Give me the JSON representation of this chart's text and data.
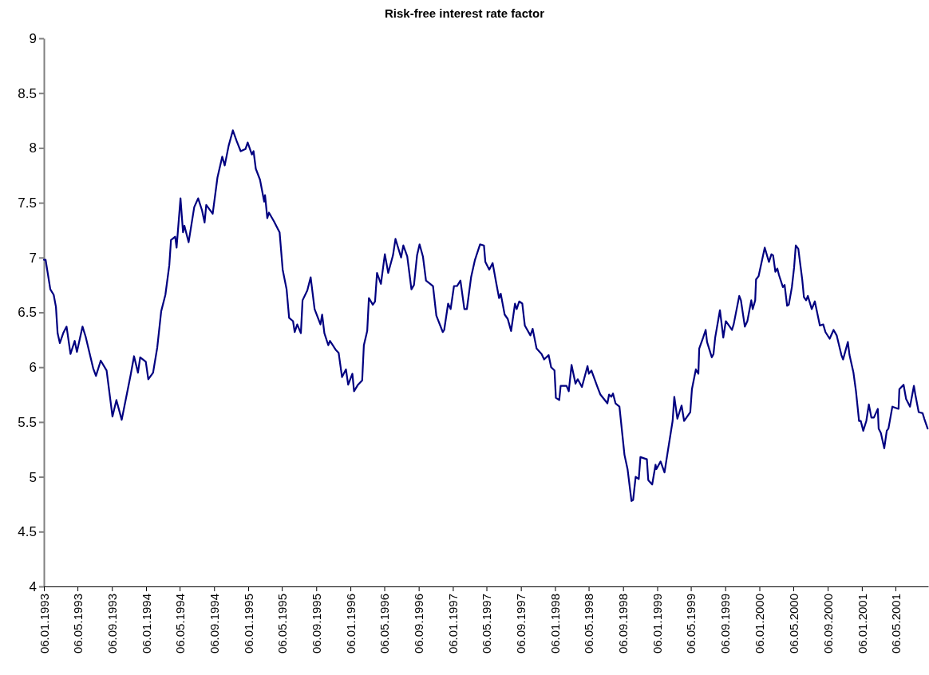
{
  "chart_data": {
    "type": "line",
    "title": "Risk-free interest rate factor",
    "x": [
      "1993-01-06",
      "1993-01-12",
      "1993-01-29",
      "1993-02-10",
      "1993-02-18",
      "1993-02-24",
      "1993-03-04",
      "1993-03-16",
      "1993-03-28",
      "1993-04-11",
      "1993-04-26",
      "1993-05-04",
      "1993-05-24",
      "1993-06-04",
      "1993-07-01",
      "1993-07-11",
      "1993-07-28",
      "1993-08-18",
      "1993-09-08",
      "1993-09-22",
      "1993-10-11",
      "1993-10-25",
      "1993-11-12",
      "1993-11-24",
      "1993-12-08",
      "1993-12-16",
      "1994-01-05",
      "1994-01-14",
      "1994-01-31",
      "1994-02-15",
      "1994-03-01",
      "1994-03-16",
      "1994-03-30",
      "1994-04-05",
      "1994-04-20",
      "1994-04-25",
      "1994-05-09",
      "1994-05-18",
      "1994-05-23",
      "1994-06-07",
      "1994-06-27",
      "1994-07-11",
      "1994-07-25",
      "1994-08-03",
      "1994-08-09",
      "1994-09-01",
      "1994-09-18",
      "1994-10-05",
      "1994-10-14",
      "1994-10-28",
      "1994-11-12",
      "1994-11-26",
      "1994-12-10",
      "1994-12-27",
      "1995-01-04",
      "1995-01-19",
      "1995-01-25",
      "1995-02-02",
      "1995-02-17",
      "1995-03-04",
      "1995-03-07",
      "1995-03-15",
      "1995-03-21",
      "1995-04-08",
      "1995-04-28",
      "1995-05-09",
      "1995-05-23",
      "1995-06-01",
      "1995-06-15",
      "1995-06-21",
      "1995-06-30",
      "1995-07-13",
      "1995-07-19",
      "1995-08-05",
      "1995-08-17",
      "1995-08-31",
      "1995-09-21",
      "1995-09-27",
      "1995-10-05",
      "1995-10-19",
      "1995-10-25",
      "1995-11-14",
      "1995-11-25",
      "1995-12-07",
      "1995-12-21",
      "1995-12-29",
      "1996-01-13",
      "1996-01-19",
      "1996-02-02",
      "1996-02-17",
      "1996-02-23",
      "1996-03-06",
      "1996-03-12",
      "1996-03-26",
      "1996-04-03",
      "1996-04-10",
      "1996-04-24",
      "1996-05-08",
      "1996-05-20",
      "1996-06-06",
      "1996-06-15",
      "1996-07-05",
      "1996-07-13",
      "1996-07-27",
      "1996-08-11",
      "1996-08-20",
      "1996-08-31",
      "1996-09-09",
      "1996-09-21",
      "1996-10-02",
      "1996-10-27",
      "1996-11-08",
      "1996-12-01",
      "1996-12-06",
      "1996-12-20",
      "1996-12-29",
      "1997-01-10",
      "1997-01-21",
      "1997-02-02",
      "1997-02-16",
      "1997-02-25",
      "1997-03-12",
      "1997-03-26",
      "1997-04-13",
      "1997-04-27",
      "1997-05-02",
      "1997-05-16",
      "1997-05-28",
      "1997-06-09",
      "1997-06-20",
      "1997-06-26",
      "1997-07-10",
      "1997-07-21",
      "1997-08-02",
      "1997-08-16",
      "1997-08-22",
      "1997-08-31",
      "1997-09-11",
      "1997-09-20",
      "1997-10-10",
      "1997-10-18",
      "1997-11-01",
      "1997-11-19",
      "1997-11-28",
      "1997-12-14",
      "1997-12-23",
      "1998-01-04",
      "1998-01-09",
      "1998-01-21",
      "1998-01-26",
      "1998-02-16",
      "1998-02-24",
      "1998-03-06",
      "1998-03-20",
      "1998-03-28",
      "1998-04-12",
      "1998-05-02",
      "1998-05-07",
      "1998-05-16",
      "1998-06-05",
      "1998-06-17",
      "1998-07-12",
      "1998-07-18",
      "1998-07-26",
      "1998-08-01",
      "1998-08-10",
      "1998-08-24",
      "1998-09-11",
      "1998-09-22",
      "1998-10-06",
      "1998-10-12",
      "1998-10-21",
      "1998-11-01",
      "1998-11-07",
      "1998-11-30",
      "1998-12-05",
      "1998-12-19",
      "1998-12-31",
      "1999-01-03",
      "1999-01-18",
      "1999-02-01",
      "1999-02-12",
      "1999-03-02",
      "1999-03-08",
      "1999-03-19",
      "1999-04-03",
      "1999-04-12",
      "1999-05-04",
      "1999-05-10",
      "1999-05-24",
      "1999-06-02",
      "1999-06-05",
      "1999-06-19",
      "1999-06-28",
      "1999-07-03",
      "1999-07-20",
      "1999-07-26",
      "1999-08-01",
      "1999-08-18",
      "1999-08-30",
      "1999-09-08",
      "1999-09-30",
      "1999-10-06",
      "1999-10-26",
      "1999-11-01",
      "1999-11-15",
      "1999-11-24",
      "1999-12-08",
      "1999-12-13",
      "1999-12-22",
      "1999-12-25",
      "2000-01-03",
      "2000-01-25",
      "2000-02-09",
      "2000-02-18",
      "2000-02-24",
      "2000-03-03",
      "2000-03-10",
      "2000-03-16",
      "2000-03-30",
      "2000-04-05",
      "2000-04-14",
      "2000-04-20",
      "2000-05-01",
      "2000-05-09",
      "2000-05-15",
      "2000-05-24",
      "2000-05-29",
      "2000-06-07",
      "2000-06-13",
      "2000-06-21",
      "2000-06-27",
      "2000-07-11",
      "2000-07-22",
      "2000-08-09",
      "2000-08-21",
      "2000-08-29",
      "2000-09-13",
      "2000-09-27",
      "2000-10-08",
      "2000-10-25",
      "2000-10-31",
      "2000-11-17",
      "2000-11-23",
      "2000-12-07",
      "2000-12-16",
      "2000-12-27",
      "2001-01-02",
      "2001-01-11",
      "2001-01-22",
      "2001-01-31",
      "2001-02-09",
      "2001-02-18",
      "2001-03-04",
      "2001-03-07",
      "2001-03-15",
      "2001-03-27",
      "2001-04-05",
      "2001-04-11",
      "2001-04-25",
      "2001-05-17",
      "2001-05-20",
      "2001-06-04",
      "2001-06-13",
      "2001-06-27",
      "2001-07-11",
      "2001-07-16",
      "2001-07-28",
      "2001-08-11",
      "2001-08-17",
      "2001-08-29"
    ],
    "series": [
      {
        "color": "#000080",
        "values": [
          6.98,
          6.98,
          6.71,
          6.66,
          6.55,
          6.31,
          6.22,
          6.31,
          6.37,
          6.12,
          6.24,
          6.14,
          6.37,
          6.28,
          5.99,
          5.92,
          6.06,
          5.97,
          5.55,
          5.7,
          5.52,
          5.7,
          5.93,
          6.1,
          5.95,
          6.09,
          6.05,
          5.89,
          5.95,
          6.18,
          6.51,
          6.66,
          6.93,
          7.16,
          7.19,
          7.09,
          7.54,
          7.23,
          7.29,
          7.14,
          7.46,
          7.54,
          7.43,
          7.32,
          7.48,
          7.4,
          7.73,
          7.92,
          7.84,
          8.02,
          8.16,
          8.06,
          7.97,
          7.99,
          8.05,
          7.94,
          7.97,
          7.81,
          7.71,
          7.51,
          7.57,
          7.36,
          7.41,
          7.33,
          7.23,
          6.89,
          6.71,
          6.45,
          6.42,
          6.32,
          6.39,
          6.31,
          6.61,
          6.7,
          6.82,
          6.53,
          6.39,
          6.48,
          6.31,
          6.2,
          6.24,
          6.16,
          6.13,
          5.91,
          5.98,
          5.84,
          5.94,
          5.78,
          5.84,
          5.88,
          6.2,
          6.33,
          6.63,
          6.57,
          6.6,
          6.86,
          6.76,
          7.03,
          6.86,
          7.02,
          7.17,
          7.0,
          7.11,
          7.01,
          6.71,
          6.75,
          7.02,
          7.12,
          7.01,
          6.79,
          6.74,
          6.47,
          6.32,
          6.34,
          6.58,
          6.53,
          6.74,
          6.74,
          6.79,
          6.53,
          6.53,
          6.82,
          6.98,
          7.12,
          7.11,
          6.96,
          6.89,
          6.95,
          6.78,
          6.63,
          6.67,
          6.48,
          6.44,
          6.33,
          6.58,
          6.53,
          6.6,
          6.58,
          6.38,
          6.29,
          6.35,
          6.17,
          6.12,
          6.07,
          6.11,
          6.0,
          5.97,
          5.72,
          5.7,
          5.83,
          5.83,
          5.78,
          6.02,
          5.85,
          5.89,
          5.82,
          6.01,
          5.94,
          5.97,
          5.83,
          5.75,
          5.67,
          5.75,
          5.73,
          5.76,
          5.67,
          5.64,
          5.2,
          5.07,
          4.78,
          4.79,
          5.0,
          4.98,
          5.18,
          5.16,
          4.97,
          4.93,
          5.11,
          5.07,
          5.14,
          5.04,
          5.22,
          5.51,
          5.73,
          5.53,
          5.65,
          5.51,
          5.59,
          5.8,
          5.98,
          5.94,
          6.17,
          6.27,
          6.34,
          6.23,
          6.09,
          6.12,
          6.27,
          6.52,
          6.27,
          6.42,
          6.34,
          6.39,
          6.65,
          6.61,
          6.37,
          6.42,
          6.61,
          6.53,
          6.61,
          6.8,
          6.83,
          7.09,
          6.96,
          7.03,
          7.02,
          6.87,
          6.9,
          6.84,
          6.73,
          6.75,
          6.56,
          6.57,
          6.73,
          6.91,
          7.11,
          7.08,
          6.98,
          6.8,
          6.64,
          6.61,
          6.65,
          6.53,
          6.6,
          6.38,
          6.39,
          6.32,
          6.26,
          6.34,
          6.29,
          6.11,
          6.07,
          6.23,
          6.11,
          5.95,
          5.78,
          5.51,
          5.51,
          5.42,
          5.51,
          5.66,
          5.54,
          5.54,
          5.62,
          5.44,
          5.4,
          5.26,
          5.42,
          5.44,
          5.64,
          5.62,
          5.8,
          5.84,
          5.71,
          5.64,
          5.83,
          5.75,
          5.59,
          5.58,
          5.53,
          5.44
        ]
      }
    ],
    "xlim": [
      "1993-01-06",
      "2001-08-31"
    ],
    "xticks": [
      {
        "value": "1993-01-06",
        "label": "06.01.1993"
      },
      {
        "value": "1993-05-06",
        "label": "06.05.1993"
      },
      {
        "value": "1993-09-06",
        "label": "06.09.1993"
      },
      {
        "value": "1994-01-06",
        "label": "06.01.1994"
      },
      {
        "value": "1994-05-06",
        "label": "06.05.1994"
      },
      {
        "value": "1994-09-06",
        "label": "06.09.1994"
      },
      {
        "value": "1995-01-06",
        "label": "06.01.1995"
      },
      {
        "value": "1995-05-06",
        "label": "06.05.1995"
      },
      {
        "value": "1995-09-06",
        "label": "06.09.1995"
      },
      {
        "value": "1996-01-06",
        "label": "06.01.1996"
      },
      {
        "value": "1996-05-06",
        "label": "06.05.1996"
      },
      {
        "value": "1996-09-06",
        "label": "06.09.1996"
      },
      {
        "value": "1997-01-06",
        "label": "06.01.1997"
      },
      {
        "value": "1997-05-06",
        "label": "06.05.1997"
      },
      {
        "value": "1997-09-06",
        "label": "06.09.1997"
      },
      {
        "value": "1998-01-06",
        "label": "06.01.1998"
      },
      {
        "value": "1998-05-06",
        "label": "06.05.1998"
      },
      {
        "value": "1998-09-06",
        "label": "06.09.1998"
      },
      {
        "value": "1999-01-06",
        "label": "06.01.1999"
      },
      {
        "value": "1999-05-06",
        "label": "06.05.1999"
      },
      {
        "value": "1999-09-06",
        "label": "06.09.1999"
      },
      {
        "value": "2000-01-06",
        "label": "06.01.2000"
      },
      {
        "value": "2000-05-06",
        "label": "06.05.2000"
      },
      {
        "value": "2000-09-06",
        "label": "06.09.2000"
      },
      {
        "value": "2001-01-06",
        "label": "06.01.2001"
      },
      {
        "value": "2001-05-06",
        "label": "06.05.2001"
      }
    ],
    "ylim": [
      4,
      9
    ],
    "yticks": [
      4,
      4.5,
      5,
      5.5,
      6,
      6.5,
      7,
      7.5,
      8,
      8.5,
      9
    ],
    "grid": false,
    "marker": "none",
    "line_style": "solid"
  }
}
